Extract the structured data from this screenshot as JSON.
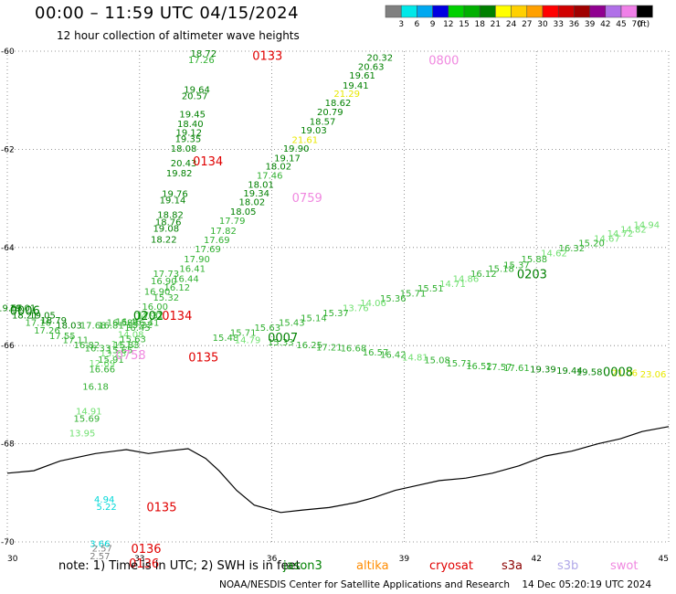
{
  "header": {
    "title": "00:00 – 11:59 UTC 04/15/2024",
    "subtitle": "12 hour collection of altimeter wave heights"
  },
  "note": {
    "text": "note: 1) Time is in UTC; 2) SWH is in feet",
    "satellites": [
      {
        "name": "jason3",
        "color": "#008000"
      },
      {
        "name": "altika",
        "color": "#ff8c00"
      },
      {
        "name": "cryosat",
        "color": "#e00000"
      },
      {
        "name": "s3a",
        "color": "#8b0000"
      },
      {
        "name": "s3b",
        "color": "#b0a8e8"
      },
      {
        "name": "swot",
        "color": "#f088e0"
      }
    ]
  },
  "footer": "NOAA/NESDIS Center for Satellite Applications and Research    14 Dec 05:20:19 UTC 2024",
  "legend": {
    "unit": "(ft)",
    "colors": [
      "#808080",
      "#00e8e8",
      "#00a8f0",
      "#0000e0",
      "#00d000",
      "#00b000",
      "#008000",
      "#ffff00",
      "#ffd000",
      "#ffa000",
      "#ff0000",
      "#d00000",
      "#a00000",
      "#900090",
      "#b070e8",
      "#f080e8",
      "#000000"
    ],
    "labels": [
      "3",
      "6",
      "9",
      "12",
      "15",
      "18",
      "21",
      "24",
      "27",
      "30",
      "33",
      "36",
      "39",
      "42",
      "45",
      "70"
    ]
  },
  "chart_data": {
    "type": "scatter",
    "title": "12 hour collection of altimeter wave heights",
    "xlabel": "",
    "ylabel": "",
    "x_axis": "longitude",
    "y_axis": "latitude",
    "xlim": [
      30,
      45
    ],
    "ylim": [
      -70,
      -60
    ],
    "x_ticks": [
      "30",
      "33",
      "36",
      "39",
      "42",
      "45"
    ],
    "y_ticks": [
      "-60",
      "-62",
      "-64",
      "-66",
      "-68",
      "-70"
    ],
    "grid": "dotted",
    "coastline": [
      [
        30,
        -68.6
      ],
      [
        30.6,
        -68.55
      ],
      [
        31.2,
        -68.35
      ],
      [
        32,
        -68.2
      ],
      [
        32.7,
        -68.12
      ],
      [
        33.2,
        -68.2
      ],
      [
        33.6,
        -68.15
      ],
      [
        34.1,
        -68.1
      ],
      [
        34.5,
        -68.3
      ],
      [
        34.8,
        -68.55
      ],
      [
        35.2,
        -68.95
      ],
      [
        35.6,
        -69.25
      ],
      [
        36.2,
        -69.4
      ],
      [
        36.7,
        -69.35
      ],
      [
        37.3,
        -69.3
      ],
      [
        37.9,
        -69.2
      ],
      [
        38.3,
        -69.1
      ],
      [
        38.8,
        -68.95
      ],
      [
        39.3,
        -68.85
      ],
      [
        39.8,
        -68.75
      ],
      [
        40.4,
        -68.7
      ],
      [
        41.0,
        -68.6
      ],
      [
        41.6,
        -68.45
      ],
      [
        42.2,
        -68.25
      ],
      [
        42.8,
        -68.15
      ],
      [
        43.4,
        -68.0
      ],
      [
        43.9,
        -67.9
      ],
      [
        44.4,
        -67.75
      ],
      [
        45,
        -67.65
      ]
    ],
    "coastline_color": "#000000",
    "tracks": [
      {
        "name": "jason3",
        "time": "0800",
        "time_pos": [
          39.9,
          -60.2
        ],
        "time_color": "#f088e0",
        "points": [
          [
            38.45,
            -60.2,
            "20.32"
          ],
          [
            38.25,
            -60.38,
            "20.63"
          ],
          [
            38.05,
            -60.56,
            "19.61"
          ],
          [
            37.9,
            -60.76,
            "19.41"
          ],
          [
            37.7,
            -60.93,
            "21.29"
          ],
          [
            37.5,
            -61.12,
            "18.62"
          ],
          [
            37.32,
            -61.3,
            "20.79"
          ],
          [
            37.15,
            -61.5,
            "18.57"
          ],
          [
            36.95,
            -61.68,
            "19.03"
          ],
          [
            36.75,
            -61.87,
            "21.61"
          ],
          [
            36.55,
            -62.05,
            "19.90"
          ],
          [
            36.35,
            -62.24,
            "19.17"
          ],
          [
            36.15,
            -62.41,
            "18.02"
          ],
          [
            35.95,
            -62.6,
            "17.46"
          ],
          [
            35.75,
            -62.78,
            "18.01"
          ],
          [
            35.65,
            -62.96,
            "19.34"
          ],
          [
            35.55,
            -63.14,
            "18.02"
          ],
          [
            35.35,
            -63.33,
            "18.05"
          ],
          [
            35.1,
            -63.52,
            "17.79"
          ],
          [
            34.9,
            -63.72,
            "17.82"
          ],
          [
            34.75,
            -63.91,
            "17.69"
          ],
          [
            34.55,
            -64.1,
            "17.69"
          ],
          [
            34.3,
            -64.3,
            "17.90"
          ],
          [
            34.2,
            -64.5,
            "16.41"
          ],
          [
            34.05,
            -64.7,
            "16.44"
          ],
          [
            33.85,
            -64.88,
            "16.12"
          ],
          [
            33.6,
            -65.08,
            "15.32"
          ],
          [
            33.35,
            -65.27,
            "16.00"
          ],
          [
            33.2,
            -65.46,
            "14.90"
          ],
          [
            33.0,
            -65.64,
            "15.22"
          ],
          [
            32.8,
            -65.84,
            "14.08"
          ],
          [
            32.65,
            -66.03,
            "14.12"
          ],
          [
            32.4,
            -66.22,
            "13.28"
          ],
          [
            32.15,
            -66.42,
            "12.69"
          ]
        ]
      },
      {
        "name": "cryosat",
        "time": "0134",
        "time_pos": [
          34.55,
          -62.25
        ],
        "time_color": "#e00000",
        "points": [
          [
            34.45,
            -60.11,
            "18.72"
          ],
          [
            34.4,
            -60.24,
            "17.26"
          ],
          [
            34.3,
            -60.85,
            "19.64"
          ],
          [
            34.25,
            -60.98,
            "20.57"
          ],
          [
            34.2,
            -61.35,
            "19.45"
          ],
          [
            34.15,
            -61.55,
            "18.40"
          ],
          [
            34.12,
            -61.72,
            "19.12"
          ],
          [
            34.1,
            -61.85,
            "19.35"
          ],
          [
            34.0,
            -62.05,
            "18.08"
          ],
          [
            34.0,
            -62.35,
            "20.43"
          ],
          [
            33.9,
            -62.55,
            "19.82"
          ],
          [
            33.8,
            -62.97,
            "19.76"
          ],
          [
            33.75,
            -63.1,
            "19.14"
          ],
          [
            33.7,
            -63.4,
            "18.82"
          ],
          [
            33.65,
            -63.55,
            "18.76"
          ],
          [
            33.6,
            -63.68,
            "19.08"
          ],
          [
            33.55,
            -63.9,
            "18.22"
          ]
        ]
      },
      {
        "name": "cryosat",
        "time": "0133",
        "time_pos": [
          35.9,
          -60.1
        ],
        "time_color": "#e00000",
        "points": []
      },
      {
        "name": "cryosat",
        "time": "0134",
        "time_pos": [
          33.85,
          -65.4
        ],
        "time_color": "#e00000",
        "points": [
          [
            33.6,
            -64.6,
            "17.73"
          ],
          [
            33.55,
            -64.75,
            "16.90"
          ],
          [
            33.4,
            -64.96,
            "16.90"
          ],
          [
            33.25,
            -65.45,
            "17.31"
          ],
          [
            33.15,
            -65.6,
            "16.41"
          ],
          [
            32.95,
            -65.7,
            "16.45"
          ],
          [
            32.85,
            -65.93,
            "15.63"
          ],
          [
            32.7,
            -66.05,
            "15.83"
          ],
          [
            32.55,
            -66.15,
            "15.65"
          ],
          [
            32.35,
            -66.35,
            "15.91"
          ],
          [
            32.15,
            -66.55,
            "16.66"
          ],
          [
            32.0,
            -66.9,
            "16.18"
          ],
          [
            31.85,
            -67.4,
            "14.91"
          ],
          [
            31.8,
            -67.55,
            "15.69"
          ],
          [
            31.7,
            -67.85,
            "13.95"
          ]
        ]
      },
      {
        "name": "cryosat",
        "time": "0135",
        "time_pos": [
          34.45,
          -66.25
        ],
        "time_color": "#e00000",
        "points": []
      },
      {
        "name": "jason3",
        "time": "0202",
        "time_pos": [
          33.2,
          -65.4
        ],
        "time_color": "#008000",
        "points": [
          [
            30.05,
            -65.3,
            "19.55"
          ],
          [
            30.4,
            -65.45,
            "18.21"
          ],
          [
            30.7,
            -65.6,
            "17.16"
          ],
          [
            30.9,
            -65.75,
            "17.26"
          ],
          [
            31.25,
            -65.87,
            "17.55"
          ],
          [
            31.55,
            -65.95,
            "17.11"
          ],
          [
            31.8,
            -66.05,
            "16.82"
          ],
          [
            32.05,
            -66.12,
            "16.33"
          ],
          [
            30.35,
            -65.3,
            "19.01"
          ],
          [
            30.8,
            -65.45,
            "19.05"
          ],
          [
            31.05,
            -65.55,
            "18.79"
          ],
          [
            31.4,
            -65.65,
            "18.03"
          ],
          [
            31.95,
            -65.65,
            "17.68"
          ],
          [
            32.35,
            -65.65,
            "16.81"
          ],
          [
            32.55,
            -65.6,
            "16.58"
          ],
          [
            32.75,
            -65.58,
            "16.46"
          ]
        ]
      },
      {
        "name": "jason3",
        "time": "0006",
        "time_pos": [
          30.4,
          -65.3
        ],
        "time_color": "#008000",
        "points": []
      },
      {
        "name": "cryosat",
        "time": "0135",
        "time_pos": [
          33.5,
          -69.3
        ],
        "time_color": "#e00000",
        "points": [
          [
            32.2,
            -69.2,
            "4.94"
          ],
          [
            32.25,
            -69.35,
            "5.22"
          ]
        ]
      },
      {
        "name": "cryosat",
        "time": "0136",
        "time_pos": [
          33.15,
          -70.15
        ],
        "time_color": "#e00000",
        "points": [
          [
            32.1,
            -70.1,
            "3.66"
          ],
          [
            32.15,
            -70.2,
            "2.57"
          ],
          [
            32.1,
            -70.35,
            "2.57"
          ]
        ]
      },
      {
        "name": "cryosat",
        "time": "0136",
        "time_pos": [
          33.1,
          -70.45
        ],
        "time_color": "#e00000",
        "points": []
      },
      {
        "name": "swot",
        "time": "0759",
        "time_pos": [
          36.8,
          -63.0
        ],
        "time_color": "#f088e0",
        "points": []
      },
      {
        "name": "swot",
        "time": "0758",
        "time_pos": [
          32.8,
          -66.2
        ],
        "time_color": "#f088e0",
        "points": []
      },
      {
        "name": "jason3",
        "time": "0203",
        "time_pos": [
          41.9,
          -64.55
        ],
        "time_color": "#008000",
        "points": [
          [
            44.5,
            -63.6,
            "14.94"
          ],
          [
            44.2,
            -63.7,
            "14.82"
          ],
          [
            43.9,
            -63.78,
            "14.72"
          ],
          [
            43.6,
            -63.88,
            "14.67"
          ],
          [
            43.25,
            -63.98,
            "15.20"
          ],
          [
            42.8,
            -64.08,
            "16.32"
          ],
          [
            42.4,
            -64.18,
            "14.62"
          ],
          [
            41.95,
            -64.3,
            "15.88"
          ],
          [
            41.55,
            -64.42,
            "15.37"
          ],
          [
            41.2,
            -64.5,
            "15.18"
          ],
          [
            40.8,
            -64.6,
            "16.12"
          ],
          [
            40.4,
            -64.7,
            "14.86"
          ],
          [
            40.1,
            -64.8,
            "14.71"
          ],
          [
            39.6,
            -64.9,
            "15.51"
          ],
          [
            39.2,
            -65.0,
            "15.71"
          ],
          [
            38.75,
            -65.1,
            "15.36"
          ],
          [
            38.3,
            -65.2,
            "14.06"
          ],
          [
            37.9,
            -65.3,
            "13.76"
          ],
          [
            37.45,
            -65.4,
            "15.37"
          ],
          [
            36.95,
            -65.5,
            "15.14"
          ],
          [
            36.45,
            -65.6,
            "15.43"
          ],
          [
            35.9,
            -65.7,
            "15.63"
          ],
          [
            35.35,
            -65.8,
            "15.71"
          ]
        ]
      },
      {
        "name": "jason3",
        "time": "0007",
        "time_pos": [
          36.25,
          -65.85
        ],
        "time_color": "#008000",
        "points": [
          [
            34.95,
            -65.9,
            "15.48"
          ],
          [
            35.45,
            -65.95,
            "14.79"
          ],
          [
            36.2,
            -66.0,
            "15.33"
          ],
          [
            36.85,
            -66.05,
            "16.25"
          ],
          [
            37.3,
            -66.1,
            "17.21"
          ],
          [
            37.85,
            -66.12,
            "16.68"
          ],
          [
            38.35,
            -66.2,
            "16.57"
          ],
          [
            38.75,
            -66.25,
            "16.42"
          ],
          [
            39.25,
            -66.3,
            "14.81"
          ],
          [
            39.75,
            -66.36,
            "15.08"
          ],
          [
            40.25,
            -66.42,
            "15.71"
          ],
          [
            40.7,
            -66.48,
            "16.52"
          ],
          [
            41.15,
            -66.5,
            "17.57"
          ],
          [
            41.55,
            -66.52,
            "17.61"
          ],
          [
            42.15,
            -66.55,
            "19.39"
          ],
          [
            42.75,
            -66.57,
            "19.44"
          ],
          [
            43.2,
            -66.6,
            "19.58"
          ],
          [
            44.0,
            -66.62,
            "21.06"
          ],
          [
            44.65,
            -66.65,
            "23.06"
          ]
        ]
      },
      {
        "name": "jason3",
        "time": "0008",
        "time_pos": [
          43.85,
          -66.55
        ],
        "time_color": "#008000",
        "points": []
      }
    ]
  }
}
